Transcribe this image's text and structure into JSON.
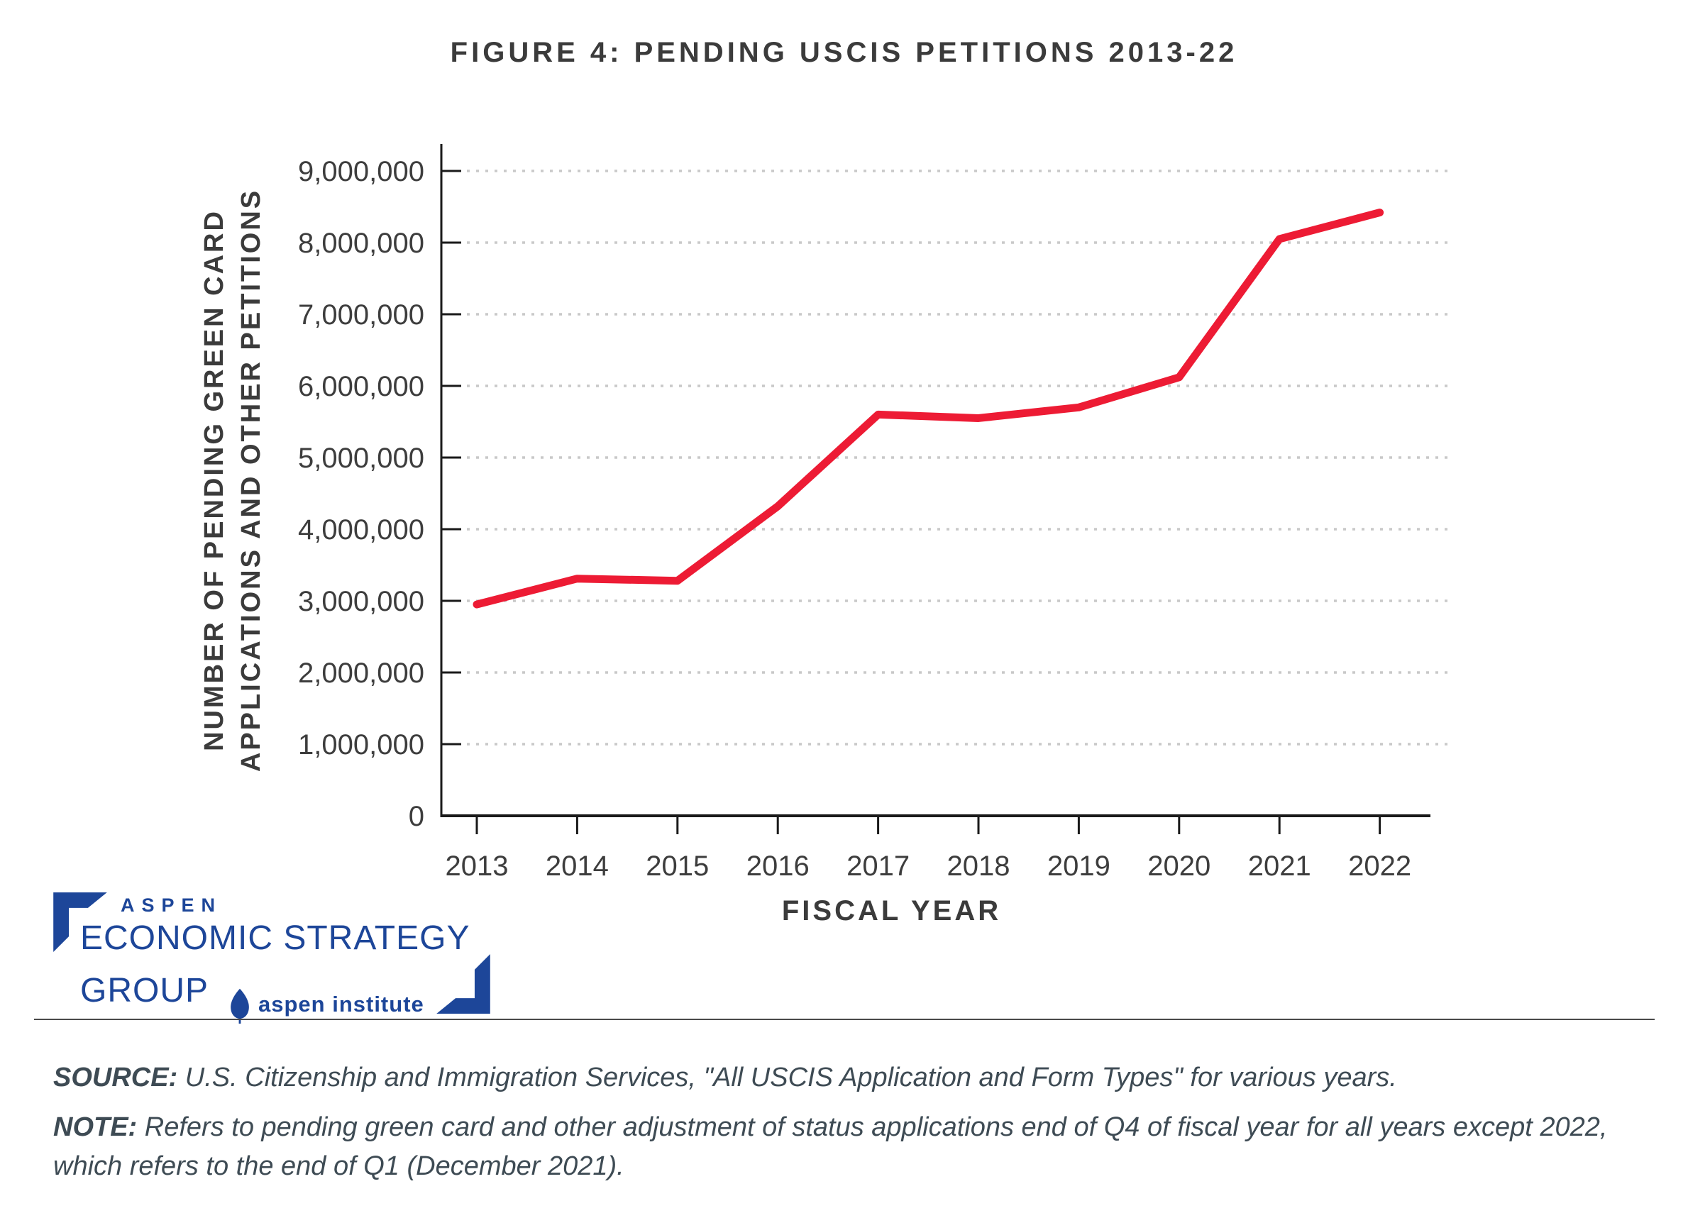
{
  "title": "FIGURE 4: PENDING USCIS PETITIONS 2013-22",
  "chart_data": {
    "type": "line",
    "title": "FIGURE 4: PENDING USCIS PETITIONS 2013-22",
    "x": [
      "2013",
      "2014",
      "2015",
      "2016",
      "2017",
      "2018",
      "2019",
      "2020",
      "2021",
      "2022"
    ],
    "series": [
      {
        "name": "Pending USCIS petitions",
        "values": [
          2950000,
          3310000,
          3280000,
          4320000,
          5600000,
          5550000,
          5700000,
          6120000,
          8050000,
          8420000
        ]
      }
    ],
    "xlabel": "FISCAL YEAR",
    "ylabel": "NUMBER OF PENDING GREEN CARD APPLICATIONS AND OTHER PETITIONS",
    "ylabel_lines": [
      "NUMBER OF PENDING GREEN CARD",
      "APPLICATIONS AND OTHER PETITIONS"
    ],
    "ylim": [
      0,
      9500000
    ],
    "yticks": [
      0,
      1000000,
      2000000,
      3000000,
      4000000,
      5000000,
      6000000,
      7000000,
      8000000,
      9000000
    ],
    "ytick_labels": [
      "0",
      "1,000,000",
      "2,000,000",
      "3,000,000",
      "4,000,000",
      "5,000,000",
      "6,000,000",
      "7,000,000",
      "8,000,000",
      "9,000,000"
    ],
    "grid": "horizontal dotted gridlines at each million, no top/right border",
    "legend": "none",
    "line_color": "#ed1b34"
  },
  "logo": {
    "aspen": "ASPEN",
    "line1": "ECONOMIC STRATEGY",
    "line2": "GROUP",
    "institute": "aspen institute"
  },
  "footer": {
    "source_label": "SOURCE:",
    "source_text": " U.S. Citizenship and Immigration Services, \"All USCIS Application and Form Types\" for various years.",
    "note_label": "NOTE:",
    "note_text": " Refers to pending green card and other adjustment of status applications end of Q4 of fiscal year for all years except 2022, which refers to the end of Q1 (December 2021)."
  },
  "colors": {
    "line": "#ed1b34",
    "axis": "#1a1a1a",
    "grid": "#c9c9c9",
    "text_dark": "#3b3b3b",
    "tick_label": "#3d3d3d",
    "footer_text": "#3e4b54",
    "logo_blue": "#1d4699",
    "background": "#ffffff"
  }
}
